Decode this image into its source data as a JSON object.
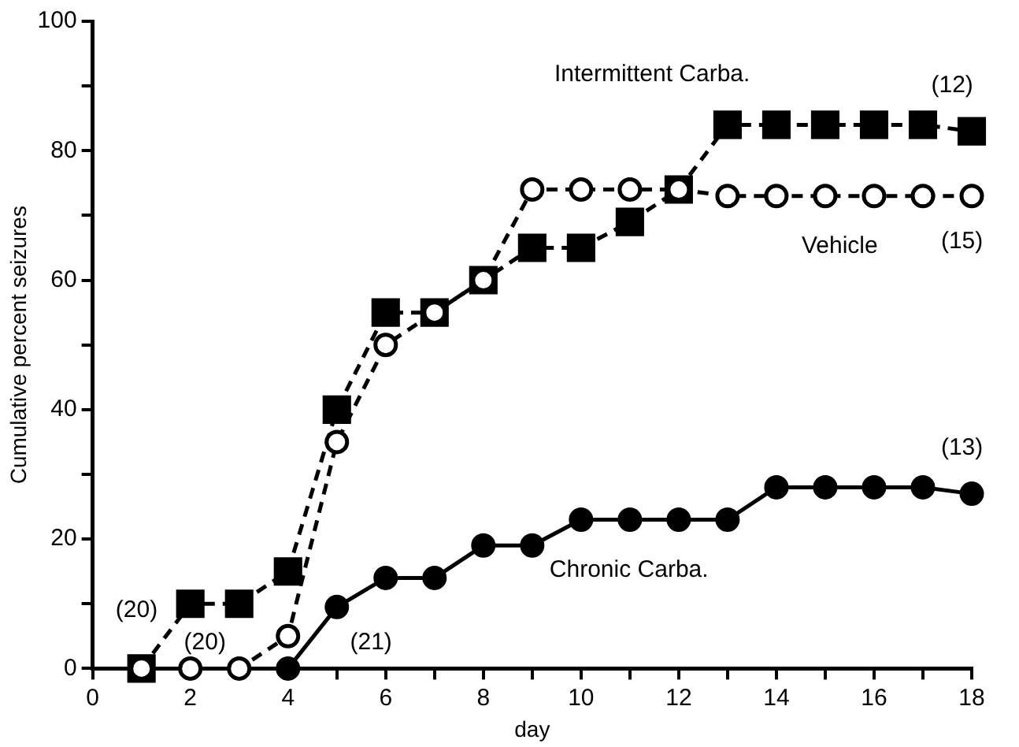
{
  "chart_data": {
    "type": "line",
    "xlabel": "day",
    "ylabel": "Cumulative percent seizures",
    "x": [
      1,
      2,
      3,
      4,
      5,
      6,
      7,
      8,
      9,
      10,
      11,
      12,
      13,
      14,
      15,
      16,
      17,
      18
    ],
    "series": [
      {
        "name": "Intermittent Carba.",
        "color": "#000000",
        "marker": "square",
        "line_style": "dashed",
        "values": [
          0,
          10,
          10,
          15,
          40,
          55,
          55,
          60,
          65,
          65,
          69,
          74,
          84,
          84,
          84,
          84,
          84,
          83
        ]
      },
      {
        "name": "Vehicle",
        "color": "#000000",
        "marker": "circle",
        "line_style": "dashed",
        "values": [
          0,
          0,
          0,
          5,
          35,
          50,
          55,
          60,
          74,
          74,
          74,
          74,
          73,
          73,
          73,
          73,
          73,
          73
        ]
      },
      {
        "name": "Chronic Carba.",
        "color": "#000000",
        "marker": "circle",
        "line_style": "solid",
        "values": [
          null,
          null,
          null,
          0,
          9.5,
          14,
          14,
          19,
          19,
          23,
          23,
          23,
          23,
          28,
          28,
          28,
          28,
          27
        ]
      }
    ],
    "xlim": [
      0,
      18
    ],
    "ylim": [
      0,
      100
    ],
    "xticks": [
      0,
      {
        "value": 1,
        "label": null
      },
      2,
      {
        "value": 3,
        "label": null
      },
      4,
      {
        "value": 5,
        "label": null
      },
      6,
      {
        "value": 7,
        "label": null
      },
      8,
      {
        "value": 9,
        "label": null
      },
      10,
      {
        "value": 11,
        "label": null
      },
      12,
      {
        "value": 13,
        "label": null
      },
      14,
      {
        "value": 15,
        "label": null
      },
      16,
      {
        "value": 17,
        "label": null
      },
      18
    ],
    "yticks": [
      0,
      {
        "value": 10,
        "label": null
      },
      20,
      {
        "value": 30,
        "label": null
      },
      40,
      {
        "value": 50,
        "label": null
      },
      60,
      {
        "value": 70,
        "label": null
      },
      80,
      {
        "value": 90,
        "label": null
      },
      100
    ],
    "annotations": [
      "(20)",
      "(20)",
      "(21)",
      "(12)",
      "(15)",
      "(13)"
    ],
    "grid": false,
    "legend": false
  }
}
